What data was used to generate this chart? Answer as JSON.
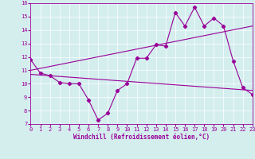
{
  "xlabel": "Windchill (Refroidissement éolien,°C)",
  "x_values": [
    0,
    1,
    2,
    3,
    4,
    5,
    6,
    7,
    8,
    9,
    10,
    11,
    12,
    13,
    14,
    15,
    16,
    17,
    18,
    19,
    20,
    21,
    22,
    23
  ],
  "line1": [
    11.8,
    10.8,
    10.6,
    10.1,
    10.0,
    10.0,
    8.8,
    7.3,
    7.8,
    9.5,
    10.0,
    11.9,
    11.9,
    12.9,
    12.8,
    15.3,
    14.3,
    15.7,
    14.3,
    14.9,
    14.3,
    11.7,
    9.7,
    9.2
  ],
  "upper_line": [
    11.0,
    14.3
  ],
  "lower_line": [
    10.7,
    9.5
  ],
  "ylim": [
    7,
    16
  ],
  "xlim": [
    0,
    23
  ],
  "yticks": [
    7,
    8,
    9,
    10,
    11,
    12,
    13,
    14,
    15,
    16
  ],
  "xticks": [
    0,
    1,
    2,
    3,
    4,
    5,
    6,
    7,
    8,
    9,
    10,
    11,
    12,
    13,
    14,
    15,
    16,
    17,
    18,
    19,
    20,
    21,
    22,
    23
  ],
  "line_color": "#990099",
  "bg_color": "#d4eeee",
  "grid_color": "#ffffff",
  "font_color": "#990099",
  "tick_fontsize": 5,
  "xlabel_fontsize": 5.5,
  "linewidth": 0.8,
  "markersize": 2.2
}
